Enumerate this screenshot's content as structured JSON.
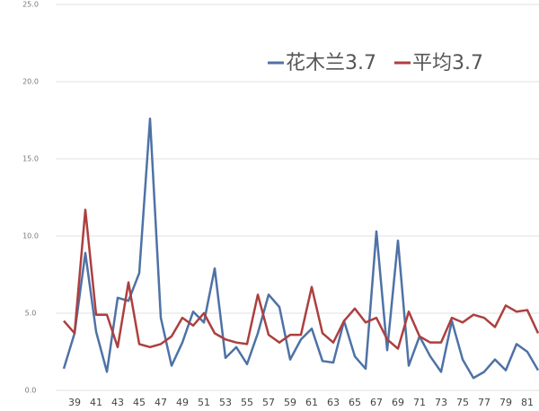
{
  "chart_data": {
    "type": "line",
    "categories": [
      null,
      "39",
      null,
      "41",
      null,
      "43",
      null,
      "45",
      null,
      "47",
      null,
      "49",
      null,
      "51",
      null,
      "53",
      null,
      "55",
      null,
      "57",
      null,
      "59",
      null,
      "61",
      null,
      "63",
      null,
      "65",
      null,
      "67",
      null,
      "69",
      null,
      "71",
      null,
      "73",
      null,
      "75",
      null,
      "77",
      null,
      "79",
      null,
      "81",
      null
    ],
    "series": [
      {
        "name": "花木兰3.7",
        "color": "#4e72a6",
        "values": [
          1.4,
          3.7,
          8.9,
          3.8,
          1.2,
          6.0,
          5.8,
          7.6,
          17.6,
          4.7,
          1.6,
          3.1,
          5.1,
          4.4,
          7.9,
          2.1,
          2.8,
          1.7,
          3.7,
          6.2,
          5.4,
          2.0,
          3.3,
          4.0,
          1.9,
          1.8,
          4.5,
          2.2,
          1.4,
          10.3,
          2.6,
          9.7,
          1.6,
          3.5,
          2.2,
          1.2,
          4.5,
          2.0,
          0.8,
          1.2,
          2.0,
          1.3,
          3.0,
          2.5,
          1.3
        ]
      },
      {
        "name": "平均3.7",
        "color": "#ad3f3f",
        "values": [
          4.5,
          3.7,
          11.7,
          4.9,
          4.9,
          2.8,
          7.0,
          3.0,
          2.8,
          3.0,
          3.5,
          4.7,
          4.2,
          5.0,
          3.7,
          3.3,
          3.1,
          3.0,
          6.2,
          3.6,
          3.1,
          3.6,
          3.6,
          6.7,
          3.7,
          3.1,
          4.5,
          5.3,
          4.4,
          4.7,
          3.3,
          2.7,
          5.1,
          3.5,
          3.1,
          3.1,
          4.7,
          4.4,
          4.9,
          4.7,
          4.1,
          5.5,
          5.1,
          5.2,
          3.7
        ]
      }
    ],
    "ylim": [
      0,
      25
    ],
    "yticks": [
      {
        "value": 0,
        "label": "0.0"
      },
      {
        "value": 5,
        "label": "5.0"
      },
      {
        "value": 10,
        "label": "10.0"
      },
      {
        "value": 15,
        "label": "15.0"
      },
      {
        "value": 20,
        "label": "20.0"
      },
      {
        "value": 25,
        "label": "25.0"
      }
    ],
    "grid": true
  }
}
